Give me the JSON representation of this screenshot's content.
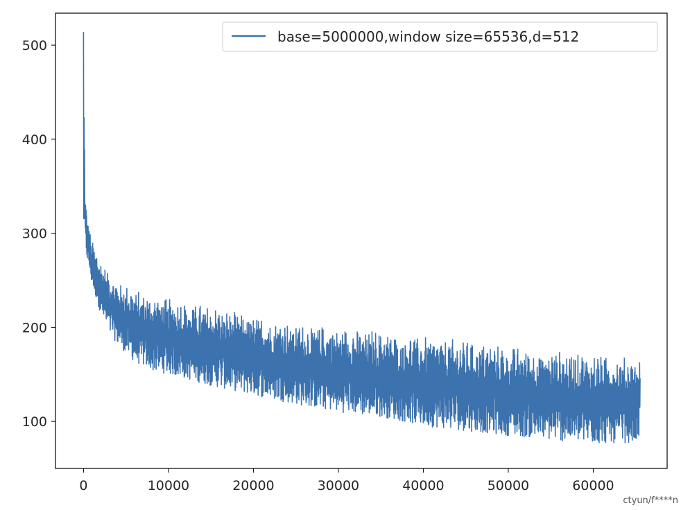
{
  "chart_data": {
    "type": "line",
    "title": "",
    "xlabel": "",
    "ylabel": "",
    "xlim": [
      -3300,
      68700
    ],
    "ylim": [
      50,
      534
    ],
    "x_ticks": [
      0,
      10000,
      20000,
      30000,
      40000,
      50000,
      60000
    ],
    "y_ticks": [
      100,
      200,
      300,
      400,
      500
    ],
    "grid": false,
    "legend_position": "top-right",
    "series": [
      {
        "name": "base=5000000,window size=65536,d=512",
        "color": "#3c72ad",
        "x_max": 65536,
        "envelope": {
          "x": [
            0,
            200,
            500,
            1000,
            2000,
            3000,
            4000,
            5000,
            6000,
            8000,
            10000,
            15000,
            20000,
            25000,
            30000,
            35000,
            40000,
            45000,
            50000,
            55000,
            60000,
            65536
          ],
          "upper": [
            514,
            340,
            315,
            292,
            270,
            258,
            250,
            246,
            240,
            235,
            230,
            222,
            212,
            205,
            200,
            196,
            190,
            186,
            180,
            175,
            172,
            166
          ],
          "lower": [
            300,
            285,
            268,
            245,
            215,
            195,
            182,
            172,
            163,
            154,
            150,
            138,
            128,
            118,
            110,
            105,
            95,
            90,
            85,
            80,
            76,
            78
          ]
        }
      }
    ]
  },
  "watermark": "ctyun/f****n"
}
